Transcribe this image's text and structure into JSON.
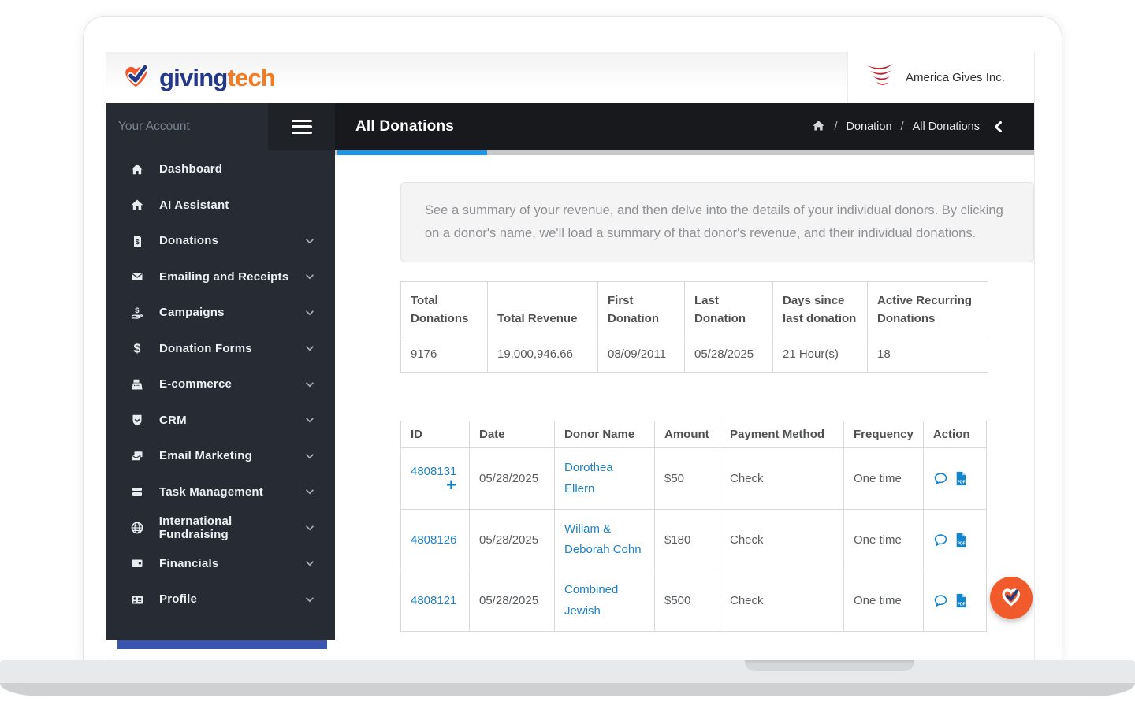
{
  "colors": {
    "brand_orange": "#f15b2b",
    "brand_navy": "#24388a",
    "accent_blue": "#1e96e8",
    "link_blue": "#1e82c5",
    "sidebar_bg": "#272c34",
    "header_bg": "#17191d",
    "sidebar_strip_blue": "#3a55b0",
    "flag_red": "#cc1f2d"
  },
  "brand": {
    "logo_icon": "heart-check-icon",
    "name_primary": "giving",
    "name_secondary": "tech",
    "org_icon": "red-stripes-flag-icon",
    "org_name": "America Gives Inc."
  },
  "sidebar": {
    "account_label": "Your Account",
    "items": [
      {
        "label": "Dashboard",
        "icon": "home-icon",
        "expandable": false
      },
      {
        "label": "AI Assistant",
        "icon": "home-icon",
        "expandable": false
      },
      {
        "label": "Donations",
        "icon": "donation-file-icon",
        "expandable": true
      },
      {
        "label": "Emailing and Receipts",
        "icon": "envelope-icon",
        "expandable": true
      },
      {
        "label": "Campaigns",
        "icon": "hand-dollar-icon",
        "expandable": true
      },
      {
        "label": "Donation Forms",
        "icon": "dollar-icon",
        "expandable": true
      },
      {
        "label": "E-commerce",
        "icon": "cash-register-icon",
        "expandable": true
      },
      {
        "label": "CRM",
        "icon": "shield-icon",
        "expandable": true
      },
      {
        "label": "Email Marketing",
        "icon": "mail-stack-icon",
        "expandable": true
      },
      {
        "label": "Task Management",
        "icon": "tasks-icon",
        "expandable": true
      },
      {
        "label": "International Fundraising",
        "icon": "globe-icon",
        "expandable": true
      },
      {
        "label": "Financials",
        "icon": "wallet-icon",
        "expandable": true
      },
      {
        "label": "Profile",
        "icon": "id-card-icon",
        "expandable": true
      }
    ]
  },
  "header": {
    "title": "All Donations",
    "home_icon": "home-icon",
    "crumb1": "Donation",
    "crumb2": "All Donations",
    "separator": "/",
    "collapse_icon": "chevron-left-icon"
  },
  "intro": {
    "text": "See a summary of your revenue, and then delve into the details of your individual donors. By clicking on a donor's name, we'll load a summary of that donor's revenue, and their individual donations."
  },
  "summary_table": {
    "headers": [
      "Total Donations",
      "Total Revenue",
      "First Donation",
      "Last Donation",
      "Days since last donation",
      "Active Recurring Donations"
    ],
    "values": [
      "9176",
      "19,000,946.66",
      "08/09/2011",
      "05/28/2025",
      "21 Hour(s)",
      "18"
    ]
  },
  "donations_table": {
    "headers": [
      "ID",
      "Date",
      "Donor Name",
      "Amount",
      "Payment Method",
      "Frequency",
      "Action"
    ],
    "plus_glyph": "+",
    "action_icons": [
      "chat-icon",
      "pdf-icon"
    ],
    "rows": [
      {
        "id": "4808131",
        "has_expand": true,
        "date": "05/28/2025",
        "donor": "Dorothea Ellern",
        "amount": "$50",
        "payment": "Check",
        "frequency": "One time"
      },
      {
        "id": "4808126",
        "has_expand": false,
        "date": "05/28/2025",
        "donor": "Wiliam & Deborah Cohn",
        "amount": "$180",
        "payment": "Check",
        "frequency": "One time"
      },
      {
        "id": "4808121",
        "has_expand": false,
        "date": "05/28/2025",
        "donor": "Combined Jewish",
        "amount": "$500",
        "payment": "Check",
        "frequency": "One time"
      }
    ]
  },
  "fab": {
    "icon": "heart-check-icon"
  }
}
